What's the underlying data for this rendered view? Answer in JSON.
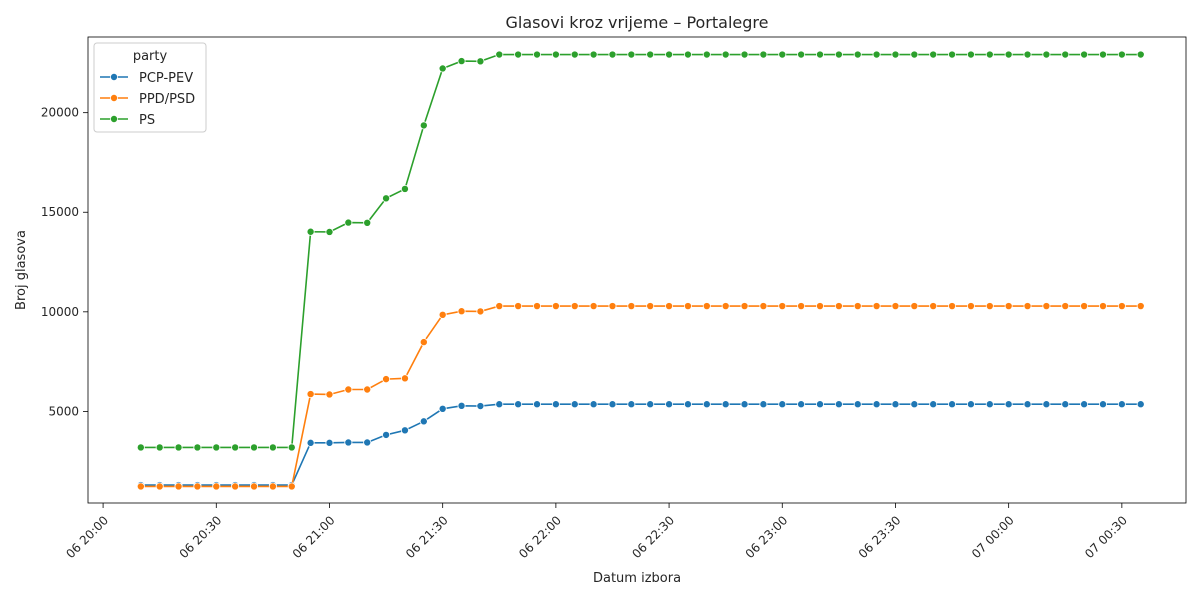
{
  "chart_data": {
    "type": "line",
    "title": "Glasovi kroz vrijeme – Portalegre",
    "xlabel": "Datum izbora",
    "ylabel": "Broj glasova",
    "legend": {
      "title": "party",
      "position": "top-left"
    },
    "grid": false,
    "x_tick_labels": [
      "06 20:00",
      "06 20:30",
      "06 21:00",
      "06 21:30",
      "06 22:00",
      "06 22:30",
      "06 23:00",
      "06 23:30",
      "07 00:00",
      "07 00:30"
    ],
    "x": [
      "06 20:10",
      "06 20:15",
      "06 20:20",
      "06 20:25",
      "06 20:30",
      "06 20:35",
      "06 20:40",
      "06 20:45",
      "06 20:50",
      "06 20:55",
      "06 21:00",
      "06 21:05",
      "06 21:10",
      "06 21:15",
      "06 21:20",
      "06 21:25",
      "06 21:30",
      "06 21:35",
      "06 21:40",
      "06 21:45",
      "06 21:50",
      "06 21:55",
      "06 22:00",
      "06 22:05",
      "06 22:10",
      "06 22:15",
      "06 22:20",
      "06 22:25",
      "06 22:30",
      "06 22:35",
      "06 22:40",
      "06 22:45",
      "06 22:50",
      "06 22:55",
      "06 23:00",
      "06 23:05",
      "06 23:10",
      "06 23:15",
      "06 23:20",
      "06 23:25",
      "06 23:30",
      "06 23:35",
      "06 23:40",
      "06 23:45",
      "06 23:50",
      "06 23:55",
      "07 00:00",
      "07 00:05",
      "07 00:10",
      "07 00:15",
      "07 00:20",
      "07 00:25",
      "07 00:30",
      "07 00:35"
    ],
    "ylim": [
      400,
      23800
    ],
    "y_ticks": [
      5000,
      10000,
      15000,
      20000
    ],
    "series": [
      {
        "name": "PCP-PEV",
        "color": "#1f77b4",
        "values": [
          1300,
          1300,
          1300,
          1300,
          1300,
          1300,
          1300,
          1300,
          1300,
          3420,
          3420,
          3440,
          3440,
          3820,
          4050,
          4500,
          5130,
          5280,
          5270,
          5360,
          5360,
          5360,
          5360,
          5360,
          5360,
          5360,
          5360,
          5360,
          5360,
          5360,
          5360,
          5360,
          5360,
          5360,
          5360,
          5360,
          5360,
          5360,
          5360,
          5360,
          5360,
          5360,
          5360,
          5360,
          5360,
          5360,
          5360,
          5360,
          5360,
          5360,
          5360,
          5360,
          5360,
          5360
        ]
      },
      {
        "name": "PPD/PSD",
        "color": "#ff7f0e",
        "values": [
          1230,
          1230,
          1230,
          1230,
          1230,
          1230,
          1230,
          1230,
          1230,
          5870,
          5850,
          6100,
          6100,
          6620,
          6660,
          8480,
          9850,
          10030,
          10020,
          10290,
          10290,
          10290,
          10290,
          10290,
          10290,
          10290,
          10290,
          10290,
          10290,
          10290,
          10290,
          10290,
          10290,
          10290,
          10290,
          10290,
          10290,
          10290,
          10290,
          10290,
          10290,
          10290,
          10290,
          10290,
          10290,
          10290,
          10290,
          10290,
          10290,
          10290,
          10290,
          10290,
          10290,
          10290
        ]
      },
      {
        "name": "PS",
        "color": "#2ca02c",
        "values": [
          3190,
          3190,
          3190,
          3190,
          3190,
          3190,
          3190,
          3190,
          3190,
          14020,
          14010,
          14480,
          14470,
          15700,
          16170,
          19360,
          22220,
          22590,
          22580,
          22920,
          22920,
          22920,
          22920,
          22920,
          22920,
          22920,
          22920,
          22920,
          22920,
          22920,
          22920,
          22920,
          22920,
          22920,
          22920,
          22920,
          22920,
          22920,
          22920,
          22920,
          22920,
          22920,
          22920,
          22920,
          22920,
          22920,
          22920,
          22920,
          22920,
          22920,
          22920,
          22920,
          22920,
          22920
        ]
      }
    ]
  }
}
